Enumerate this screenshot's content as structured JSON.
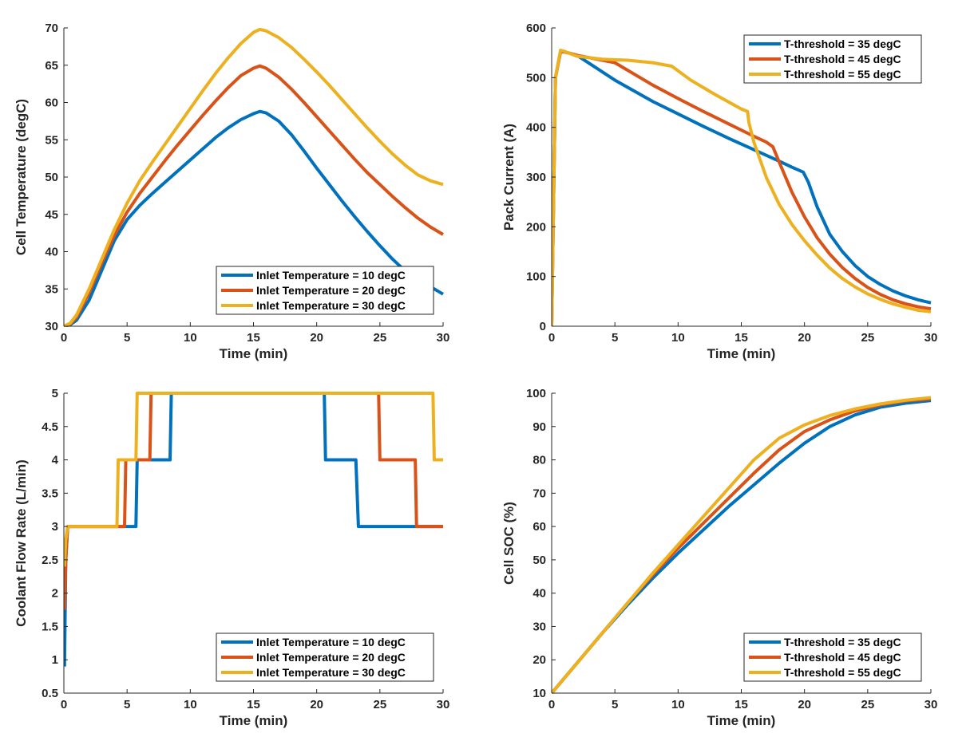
{
  "chart_data": [
    {
      "type": "line",
      "xlabel": "Time (min)",
      "ylabel": "Cell Temperature (degC)",
      "xlim": [
        0,
        30
      ],
      "ylim": [
        30,
        70
      ],
      "xticks": [
        0,
        5,
        10,
        15,
        20,
        25,
        30
      ],
      "yticks": [
        30,
        35,
        40,
        45,
        50,
        55,
        60,
        65,
        70
      ],
      "legend_position": "bottom-right",
      "grid": false,
      "series": [
        {
          "name": "Inlet Temperature = 10 degC",
          "color": "#0072BD",
          "x": [
            0,
            0.5,
            1,
            2,
            3,
            4,
            5,
            6,
            7,
            8,
            9,
            10,
            11,
            12,
            13,
            14,
            15,
            15.5,
            16,
            17,
            18,
            19,
            20,
            21,
            22,
            23,
            24,
            25,
            26,
            27,
            28,
            29,
            30
          ],
          "y": [
            30,
            30.2,
            30.8,
            33.5,
            37.5,
            41.5,
            44.3,
            46.2,
            47.8,
            49.3,
            50.8,
            52.3,
            53.8,
            55.3,
            56.6,
            57.7,
            58.5,
            58.8,
            58.6,
            57.5,
            55.7,
            53.5,
            51.2,
            49,
            46.8,
            44.7,
            42.7,
            40.8,
            39,
            37.4,
            36.3,
            35.3,
            34.3
          ]
        },
        {
          "name": "Inlet Temperature = 20 degC",
          "color": "#D95319",
          "x": [
            0,
            0.5,
            1,
            2,
            3,
            4,
            5,
            6,
            7,
            8,
            9,
            10,
            11,
            12,
            13,
            14,
            15,
            15.5,
            16,
            17,
            18,
            19,
            20,
            21,
            22,
            23,
            24,
            25,
            26,
            27,
            28,
            29,
            30
          ],
          "y": [
            30,
            30.3,
            31.2,
            34.5,
            38.5,
            42.2,
            45.3,
            47.8,
            50,
            52.2,
            54.3,
            56.3,
            58.3,
            60.2,
            62,
            63.6,
            64.6,
            64.9,
            64.6,
            63.4,
            61.8,
            60,
            58.1,
            56.2,
            54.3,
            52.4,
            50.6,
            49,
            47.4,
            45.9,
            44.5,
            43.3,
            42.3
          ]
        },
        {
          "name": "Inlet Temperature = 30 degC",
          "color": "#EDB120",
          "x": [
            0,
            0.5,
            1,
            2,
            3,
            4,
            5,
            6,
            7,
            8,
            9,
            10,
            11,
            12,
            13,
            14,
            15,
            15.5,
            16,
            17,
            18,
            19,
            20,
            21,
            22,
            23,
            24,
            25,
            26,
            27,
            28,
            29,
            30
          ],
          "y": [
            30,
            30.4,
            31.5,
            35,
            39,
            43,
            46.5,
            49.5,
            52,
            54.4,
            56.8,
            59.2,
            61.6,
            63.9,
            66,
            67.9,
            69.4,
            69.8,
            69.6,
            68.7,
            67.4,
            65.8,
            64.1,
            62.3,
            60.4,
            58.5,
            56.6,
            54.8,
            53.1,
            51.6,
            50.3,
            49.5,
            49
          ]
        }
      ]
    },
    {
      "type": "line",
      "xlabel": "Time (min)",
      "ylabel": "Pack Current (A)",
      "xlim": [
        0,
        30
      ],
      "ylim": [
        0,
        600
      ],
      "xticks": [
        0,
        5,
        10,
        15,
        20,
        25,
        30
      ],
      "yticks": [
        0,
        100,
        200,
        300,
        400,
        500,
        600
      ],
      "legend_position": "top-right",
      "grid": false,
      "series": [
        {
          "name": "T-threshold = 35 degC",
          "color": "#0072BD",
          "x": [
            0,
            0.3,
            0.7,
            1,
            2,
            5,
            8,
            10,
            12,
            14,
            16,
            18,
            19,
            19.9,
            20.3,
            21,
            22,
            23,
            24,
            25,
            26,
            27,
            28,
            29,
            30
          ],
          "y": [
            0,
            500,
            552,
            552,
            545,
            495,
            452,
            427,
            402,
            378,
            355,
            332,
            320,
            310,
            290,
            240,
            185,
            150,
            122,
            100,
            84,
            71,
            61,
            53,
            47
          ]
        },
        {
          "name": "T-threshold = 45 degC",
          "color": "#D95319",
          "x": [
            0,
            0.3,
            0.7,
            1,
            2,
            5,
            8,
            10,
            12,
            14,
            16,
            17,
            17.5,
            18,
            19,
            20,
            21,
            22,
            23,
            24,
            25,
            26,
            27,
            28,
            29,
            30
          ],
          "y": [
            0,
            500,
            552,
            552,
            545,
            530,
            485,
            458,
            432,
            407,
            382,
            370,
            361,
            330,
            270,
            220,
            178,
            145,
            118,
            96,
            78,
            64,
            53,
            45,
            39,
            35
          ]
        },
        {
          "name": "T-threshold = 55 degC",
          "color": "#EDB120",
          "x": [
            0,
            0.3,
            0.7,
            1,
            2,
            4,
            6,
            8,
            9.5,
            11,
            13,
            15,
            15.5,
            15.6,
            16,
            17,
            18,
            19,
            20,
            21,
            22,
            23,
            24,
            25,
            26,
            27,
            28,
            29,
            30
          ],
          "y": [
            0,
            500,
            555,
            553,
            543,
            537,
            535,
            530,
            523,
            495,
            465,
            437,
            432,
            410,
            370,
            298,
            245,
            205,
            172,
            143,
            117,
            96,
            79,
            65,
            54,
            45,
            38,
            32,
            29
          ]
        }
      ]
    },
    {
      "type": "line",
      "xlabel": "Time (min)",
      "ylabel": "Coolant Flow Rate (L/min)",
      "xlim": [
        0,
        30
      ],
      "ylim": [
        0.5,
        5
      ],
      "xticks": [
        0,
        5,
        10,
        15,
        20,
        25,
        30
      ],
      "yticks": [
        0.5,
        1,
        1.5,
        2,
        2.5,
        3,
        3.5,
        4,
        4.5,
        5
      ],
      "legend_position": "bottom-right",
      "grid": false,
      "series": [
        {
          "name": "Inlet Temperature = 10 degC",
          "color": "#0072BD",
          "x": [
            0.05,
            0.15,
            0.3,
            5.7,
            5.8,
            8.4,
            8.5,
            20.6,
            20.7,
            23.1,
            23.3,
            30
          ],
          "y": [
            0.9,
            2.5,
            3,
            3,
            4,
            4,
            5,
            5,
            4,
            4,
            3,
            3
          ]
        },
        {
          "name": "Inlet Temperature = 20 degC",
          "color": "#D95319",
          "x": [
            0.05,
            0.15,
            0.3,
            4.8,
            4.9,
            6.8,
            6.9,
            24.9,
            25,
            27.8,
            27.9,
            30
          ],
          "y": [
            1.75,
            2.5,
            3,
            3,
            4,
            4,
            5,
            5,
            4,
            4,
            3,
            3
          ]
        },
        {
          "name": "Inlet Temperature = 30 degC",
          "color": "#EDB120",
          "x": [
            0.05,
            0.15,
            0.3,
            4.2,
            4.3,
            5.7,
            5.8,
            29.2,
            29.3,
            30
          ],
          "y": [
            2.4,
            2.8,
            3,
            3,
            4,
            4,
            5,
            5,
            4,
            4
          ]
        }
      ]
    },
    {
      "type": "line",
      "xlabel": "Time (min)",
      "ylabel": "Cell SOC (%)",
      "xlim": [
        0,
        30
      ],
      "ylim": [
        10,
        100
      ],
      "xticks": [
        0,
        5,
        10,
        15,
        20,
        25,
        30
      ],
      "yticks": [
        10,
        20,
        30,
        40,
        50,
        60,
        70,
        80,
        90,
        100
      ],
      "legend_position": "bottom-right",
      "grid": false,
      "series": [
        {
          "name": "T-threshold = 35 degC",
          "color": "#0072BD",
          "x": [
            0,
            2,
            4,
            6,
            8,
            10,
            12,
            14,
            16,
            18,
            20,
            22,
            24,
            26,
            28,
            30
          ],
          "y": [
            10,
            19,
            28,
            36.5,
            44.5,
            52,
            59,
            66,
            72.5,
            79,
            85,
            90,
            93.5,
            95.8,
            97,
            97.8
          ]
        },
        {
          "name": "T-threshold = 45 degC",
          "color": "#D95319",
          "x": [
            0,
            2,
            4,
            6,
            8,
            10,
            12,
            14,
            16,
            18,
            20,
            22,
            24,
            26,
            28,
            30
          ],
          "y": [
            10,
            19,
            28,
            37,
            45.5,
            53.5,
            61,
            68.5,
            76,
            83,
            88.5,
            92,
            94.7,
            96.5,
            97.7,
            98.3
          ]
        },
        {
          "name": "T-threshold = 55 degC",
          "color": "#EDB120",
          "x": [
            0,
            2,
            4,
            6,
            8,
            10,
            12,
            14,
            16,
            18,
            20,
            22,
            24,
            26,
            28,
            30
          ],
          "y": [
            10,
            19,
            28,
            37,
            46,
            54.5,
            63,
            71.5,
            80,
            86.5,
            90.5,
            93.3,
            95.3,
            96.8,
            97.9,
            98.7
          ]
        }
      ]
    }
  ]
}
